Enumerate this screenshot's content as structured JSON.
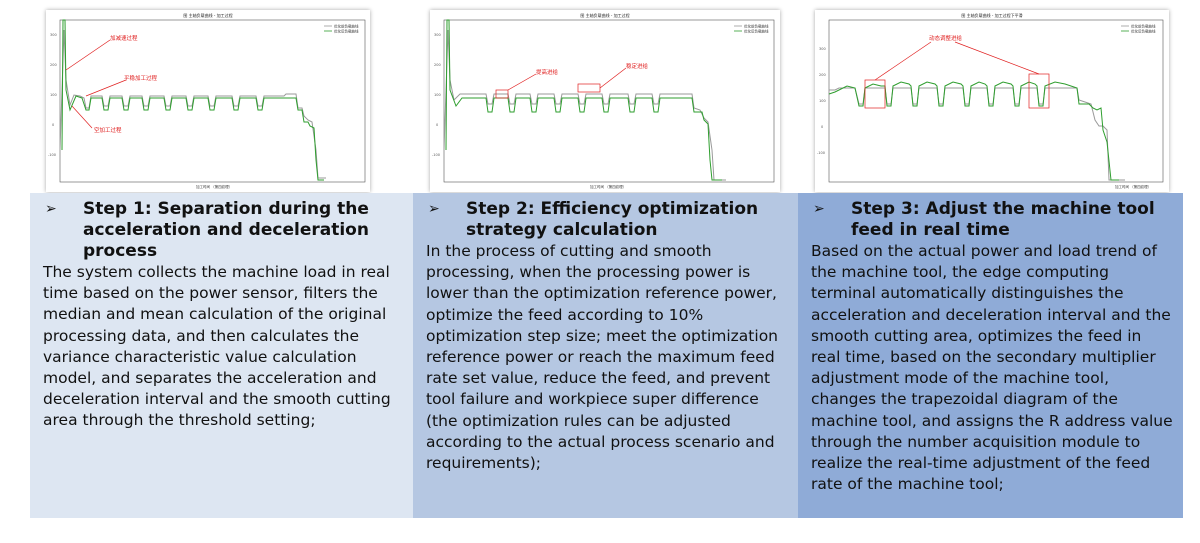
{
  "charts": [
    {
      "title": "图 主轴负载曲线 - 加工过程",
      "legend": [
        "优化前负载曲线",
        "优化后负载曲线"
      ],
      "annotations": [
        "加减速过程",
        "平稳加工过程",
        "空加工过程"
      ],
      "xlabel": "加工时间 （第四纹理）"
    },
    {
      "title": "图 主轴负载曲线 - 加工过程",
      "legend": [
        "优化前负载曲线",
        "优化后负载曲线"
      ],
      "annotations": [
        "提高进给",
        "稳定进给"
      ],
      "xlabel": "加工时间 （第四纹理）"
    },
    {
      "title": "图 主轴负载曲线 - 加工过程下平滑",
      "legend": [
        "优化前负载曲线",
        "优化后负载曲线"
      ],
      "annotations": [
        "动态调整进给"
      ],
      "xlabel": "加工时间 （第四纹理）"
    }
  ],
  "steps": [
    {
      "bullet": "➢",
      "title": "Step 1: Separation during the acceleration and deceleration process",
      "text": "The system collects the machine load in real time based on the power sensor, filters the median and mean calculation of the original processing data, and then calculates the variance characteristic value calculation model, and separates the acceleration and deceleration interval and the smooth cutting area through the threshold setting;"
    },
    {
      "bullet": "➢",
      "title": "Step 2: Efficiency optimization strategy calculation",
      "text": "In the process of cutting and smooth processing, when the processing power is lower than the optimization reference power, optimize the feed according to 10% optimization step size; meet the optimization reference power or reach the maximum feed rate set value, reduce the feed, and prevent tool failure and workpiece super difference (the optimization rules can be adjusted according to the actual process scenario and requirements);"
    },
    {
      "bullet": "➢",
      "title": "Step 3: Adjust the machine tool feed in real time",
      "text": "Based on the actual power and load trend of the machine tool, the edge computing terminal automatically distinguishes the acceleration and deceleration interval and the smooth cutting area, optimizes the feed in real time, based on the secondary multiplier adjustment mode of the machine tool, changes the trapezoidal diagram of the machine tool, and assigns the R address value through the number acquisition module to realize the real-time adjustment of the feed rate of the machine tool;"
    }
  ],
  "colors": {
    "before_line": "#9a9a9a",
    "after_line": "#2e9e2e",
    "annotation": "#e02020"
  }
}
